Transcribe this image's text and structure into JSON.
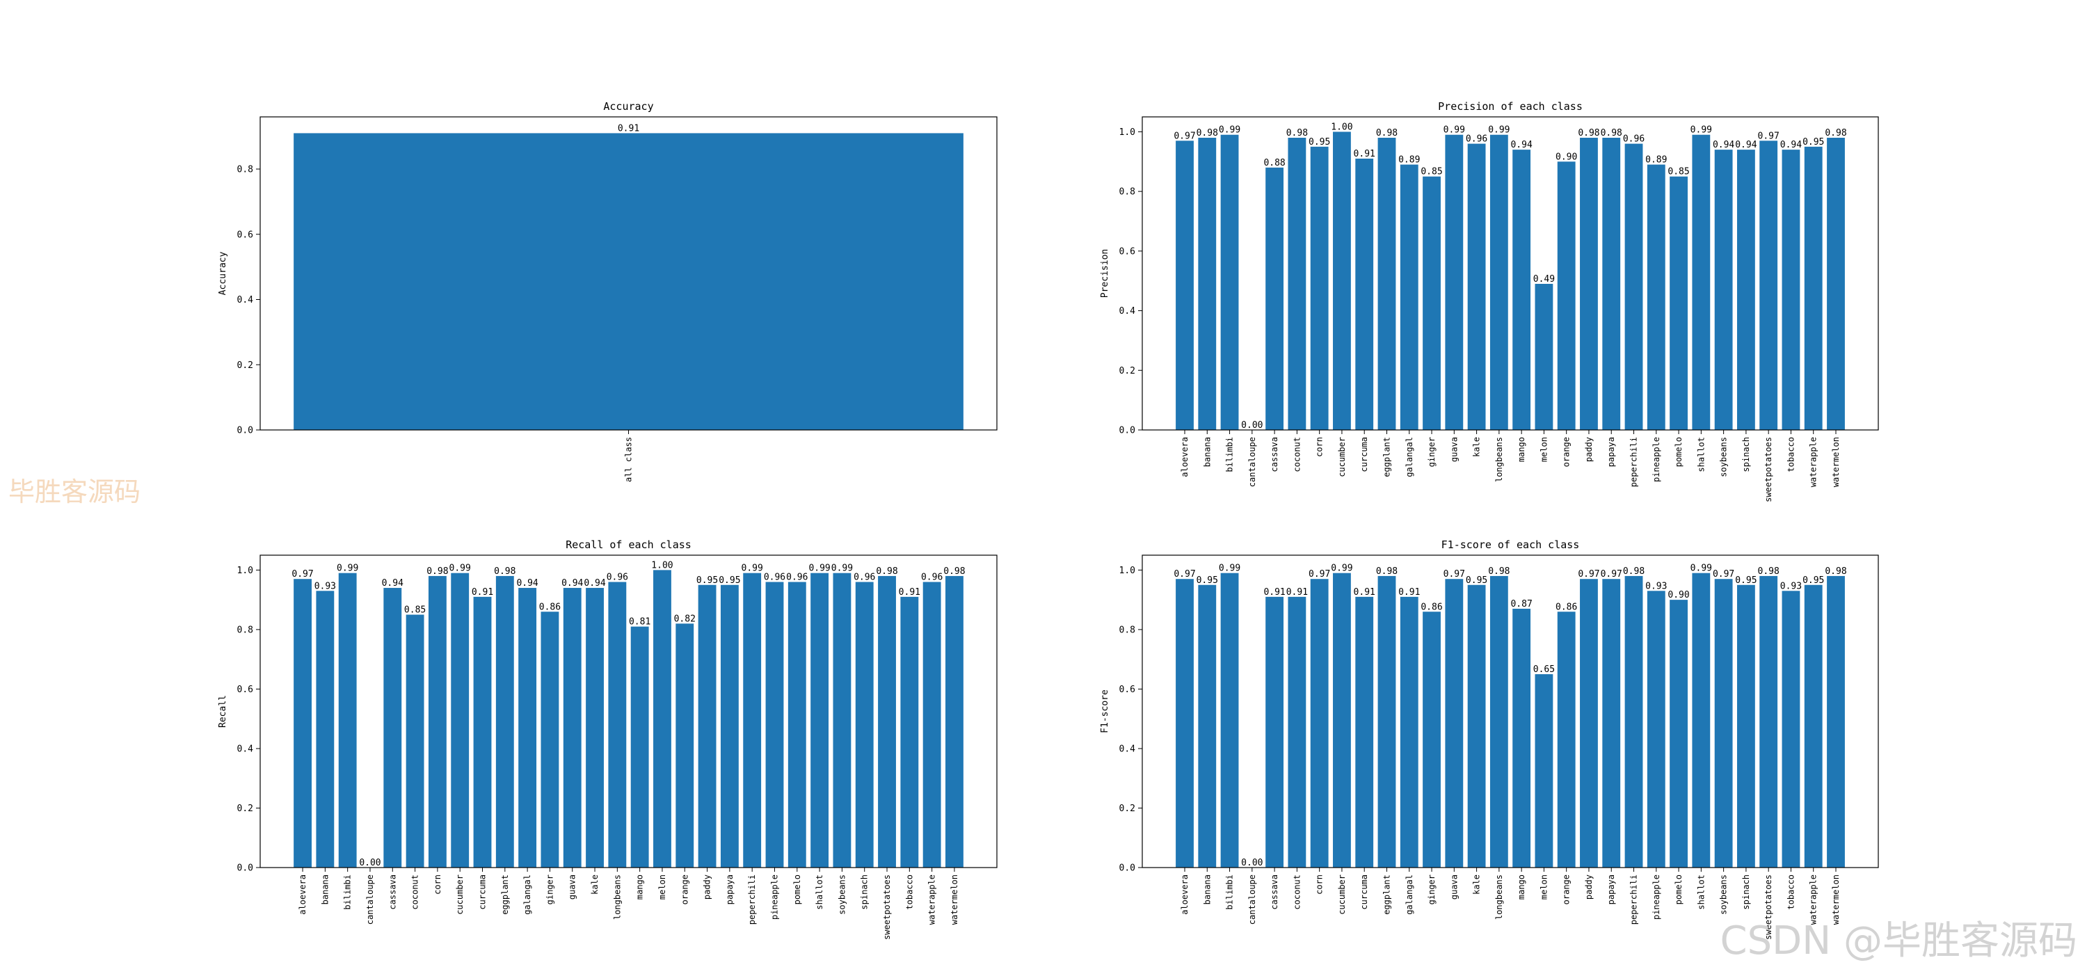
{
  "watermarks": {
    "left": "毕胜客源码",
    "right": "CSDN @毕胜客源码"
  },
  "bar_color": "#1f77b4",
  "chart_data": [
    {
      "type": "bar",
      "title": "Accuracy",
      "ylabel": "Accuracy",
      "categories": [
        "all class"
      ],
      "values": [
        0.91
      ],
      "value_labels": [
        "0.91"
      ],
      "ylim": [
        0,
        0.96
      ],
      "yticks": [
        0.0,
        0.2,
        0.4,
        0.6,
        0.8
      ],
      "ytick_labels": [
        "0.0",
        "0.2",
        "0.4",
        "0.6",
        "0.8"
      ],
      "grid": false
    },
    {
      "type": "bar",
      "title": "Precision of each class",
      "ylabel": "Precision",
      "categories": [
        "aloevera",
        "banana",
        "bilimbi",
        "cantaloupe",
        "cassava",
        "coconut",
        "corn",
        "cucumber",
        "curcuma",
        "eggplant",
        "galangal",
        "ginger",
        "guava",
        "kale",
        "longbeans",
        "mango",
        "melon",
        "orange",
        "paddy",
        "papaya",
        "peperchili",
        "pineapple",
        "pomelo",
        "shallot",
        "soybeans",
        "spinach",
        "sweetpotatoes",
        "tobacco",
        "waterapple",
        "watermelon"
      ],
      "values": [
        0.97,
        0.98,
        0.99,
        0.0,
        0.88,
        0.98,
        0.95,
        1.0,
        0.91,
        0.98,
        0.89,
        0.85,
        0.99,
        0.96,
        0.99,
        0.94,
        0.49,
        0.9,
        0.98,
        0.98,
        0.96,
        0.89,
        0.85,
        0.99,
        0.94,
        0.94,
        0.97,
        0.94,
        0.95,
        0.98
      ],
      "value_labels": [
        "0.97",
        "0.98",
        "0.99",
        "0.00",
        "0.88",
        "0.98",
        "0.95",
        "1.00",
        "0.91",
        "0.98",
        "0.89",
        "0.85",
        "0.99",
        "0.96",
        "0.99",
        "0.94",
        "0.49",
        "0.90",
        "0.98",
        "0.98",
        "0.96",
        "0.89",
        "0.85",
        "0.99",
        "0.94",
        "0.94",
        "0.97",
        "0.94",
        "0.95",
        "0.98"
      ],
      "ylim": [
        0,
        1.05
      ],
      "yticks": [
        0.0,
        0.2,
        0.4,
        0.6,
        0.8,
        1.0
      ],
      "ytick_labels": [
        "0.0",
        "0.2",
        "0.4",
        "0.6",
        "0.8",
        "1.0"
      ],
      "grid": false
    },
    {
      "type": "bar",
      "title": "Recall of each class",
      "ylabel": "Recall",
      "categories": [
        "aloevera",
        "banana",
        "bilimbi",
        "cantaloupe",
        "cassava",
        "coconut",
        "corn",
        "cucumber",
        "curcuma",
        "eggplant",
        "galangal",
        "ginger",
        "guava",
        "kale",
        "longbeans",
        "mango",
        "melon",
        "orange",
        "paddy",
        "papaya",
        "peperchili",
        "pineapple",
        "pomelo",
        "shallot",
        "soybeans",
        "spinach",
        "sweetpotatoes",
        "tobacco",
        "waterapple",
        "watermelon"
      ],
      "values": [
        0.97,
        0.93,
        0.99,
        0.0,
        0.94,
        0.85,
        0.98,
        0.99,
        0.91,
        0.98,
        0.94,
        0.86,
        0.94,
        0.94,
        0.96,
        0.81,
        1.0,
        0.82,
        0.95,
        0.95,
        0.99,
        0.96,
        0.96,
        0.99,
        0.99,
        0.96,
        0.98,
        0.91,
        0.96,
        0.98
      ],
      "value_labels": [
        "0.97",
        "0.93",
        "0.99",
        "0.00",
        "0.94",
        "0.85",
        "0.98",
        "0.99",
        "0.91",
        "0.98",
        "0.94",
        "0.86",
        "0.94",
        "0.94",
        "0.96",
        "0.81",
        "1.00",
        "0.82",
        "0.95",
        "0.95",
        "0.99",
        "0.96",
        "0.96",
        "0.99",
        "0.99",
        "0.96",
        "0.98",
        "0.91",
        "0.96",
        "0.98"
      ],
      "ylim": [
        0,
        1.05
      ],
      "yticks": [
        0.0,
        0.2,
        0.4,
        0.6,
        0.8,
        1.0
      ],
      "ytick_labels": [
        "0.0",
        "0.2",
        "0.4",
        "0.6",
        "0.8",
        "1.0"
      ],
      "grid": false
    },
    {
      "type": "bar",
      "title": "F1-score of each class",
      "ylabel": "F1-score",
      "categories": [
        "aloevera",
        "banana",
        "bilimbi",
        "cantaloupe",
        "cassava",
        "coconut",
        "corn",
        "cucumber",
        "curcuma",
        "eggplant",
        "galangal",
        "ginger",
        "guava",
        "kale",
        "longbeans",
        "mango",
        "melon",
        "orange",
        "paddy",
        "papaya",
        "peperchili",
        "pineapple",
        "pomelo",
        "shallot",
        "soybeans",
        "spinach",
        "sweetpotatoes",
        "tobacco",
        "waterapple",
        "watermelon"
      ],
      "values": [
        0.97,
        0.95,
        0.99,
        0.0,
        0.91,
        0.91,
        0.97,
        0.99,
        0.91,
        0.98,
        0.91,
        0.86,
        0.97,
        0.95,
        0.98,
        0.87,
        0.65,
        0.86,
        0.97,
        0.97,
        0.98,
        0.93,
        0.9,
        0.99,
        0.97,
        0.95,
        0.98,
        0.93,
        0.95,
        0.98
      ],
      "value_labels": [
        "0.97",
        "0.95",
        "0.99",
        "0.00",
        "0.91",
        "0.91",
        "0.97",
        "0.99",
        "0.91",
        "0.98",
        "0.91",
        "0.86",
        "0.97",
        "0.95",
        "0.98",
        "0.87",
        "0.65",
        "0.86",
        "0.97",
        "0.97",
        "0.98",
        "0.93",
        "0.90",
        "0.99",
        "0.97",
        "0.95",
        "0.98",
        "0.93",
        "0.95",
        "0.98"
      ],
      "ylim": [
        0,
        1.05
      ],
      "yticks": [
        0.0,
        0.2,
        0.4,
        0.6,
        0.8,
        1.0
      ],
      "ytick_labels": [
        "0.0",
        "0.2",
        "0.4",
        "0.6",
        "0.8",
        "1.0"
      ],
      "grid": false
    }
  ]
}
